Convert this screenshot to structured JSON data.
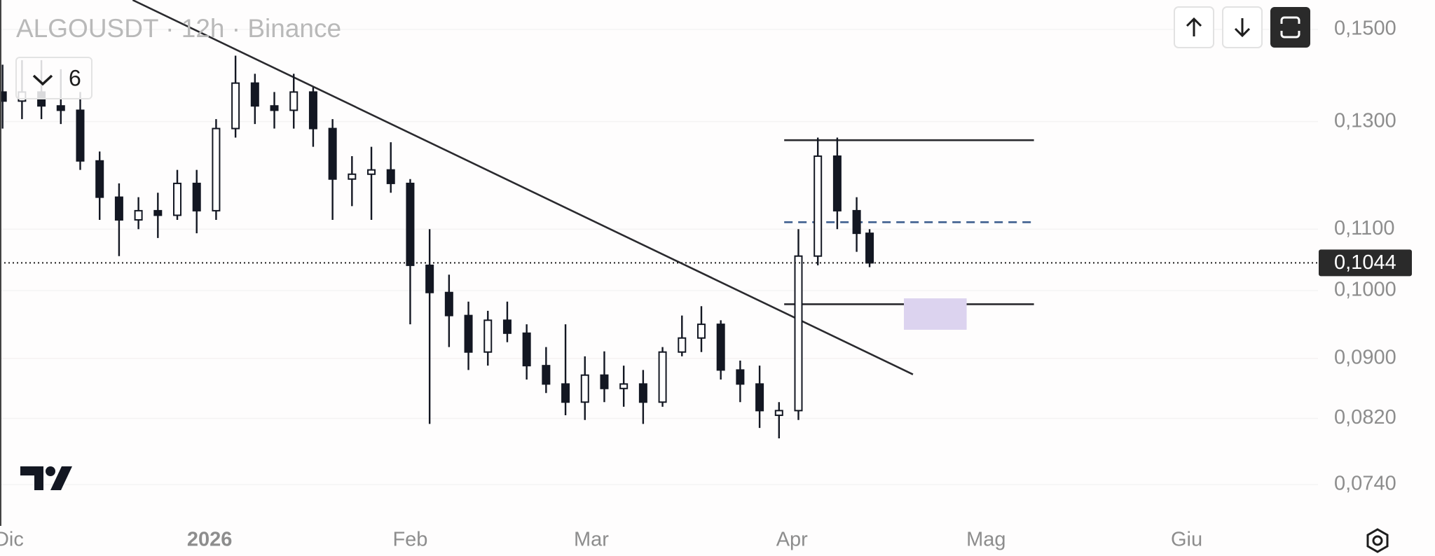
{
  "chart_data": {
    "type": "candlestick",
    "title": "ALGOUSDT · 12h · Binance",
    "indicator_label": "6",
    "color": "#131722",
    "log_scale": true,
    "grid": true,
    "x": [
      -1,
      2,
      5,
      8,
      11,
      14,
      17,
      20,
      23,
      26,
      29,
      32,
      35,
      38,
      41,
      44,
      47,
      50,
      53,
      56,
      59,
      62,
      65,
      68,
      71,
      74,
      77,
      80,
      83,
      86,
      89,
      92,
      95,
      98,
      101,
      104,
      107,
      110,
      113,
      116,
      119,
      122,
      125,
      128,
      131,
      133
    ],
    "open": [
      0.1361,
      0.1342,
      0.1361,
      0.1332,
      0.1323,
      0.1223,
      0.1156,
      0.1116,
      0.1132,
      0.1124,
      0.1181,
      0.1132,
      0.1286,
      0.138,
      0.1332,
      0.1323,
      0.1361,
      0.1286,
      0.1189,
      0.1198,
      0.1206,
      0.1181,
      0.104,
      0.0997,
      0.0962,
      0.0909,
      0.0955,
      0.0936,
      0.089,
      0.0865,
      0.0841,
      0.0877,
      0.0859,
      0.0865,
      0.0841,
      0.0909,
      0.0929,
      0.0949,
      0.0884,
      0.0865,
      0.0824,
      0.083,
      0.1055,
      0.1232,
      0.1132,
      0.1093
    ],
    "high": [
      0.142,
      0.143,
      0.143,
      0.141,
      0.1361,
      0.1241,
      0.1181,
      0.1156,
      0.1164,
      0.1206,
      0.1206,
      0.1305,
      0.144,
      0.14,
      0.1361,
      0.14,
      0.1371,
      0.1305,
      0.1232,
      0.125,
      0.1259,
      0.1189,
      0.11,
      0.1025,
      0.0983,
      0.0969,
      0.0983,
      0.0949,
      0.0916,
      0.0949,
      0.0903,
      0.091,
      0.089,
      0.0884,
      0.0916,
      0.0962,
      0.0976,
      0.0955,
      0.0897,
      0.089,
      0.0841,
      0.11,
      0.1268,
      0.1268,
      0.1156,
      0.11
    ],
    "low": [
      0.1286,
      0.1305,
      0.1305,
      0.1295,
      0.1206,
      0.1116,
      0.1055,
      0.11,
      0.1085,
      0.1116,
      0.1093,
      0.1116,
      0.1268,
      0.1295,
      0.1286,
      0.1286,
      0.125,
      0.1116,
      0.114,
      0.1116,
      0.1164,
      0.0949,
      0.0813,
      0.0916,
      0.0884,
      0.089,
      0.0923,
      0.0871,
      0.0853,
      0.0824,
      0.0818,
      0.0841,
      0.0835,
      0.0813,
      0.0835,
      0.0903,
      0.0909,
      0.0871,
      0.0841,
      0.0808,
      0.0795,
      0.0818,
      0.104,
      0.11,
      0.1062,
      0.1037
    ],
    "close": [
      0.1342,
      0.1361,
      0.1332,
      0.1323,
      0.1223,
      0.1156,
      0.1116,
      0.1132,
      0.1124,
      0.1181,
      0.1132,
      0.1286,
      0.138,
      0.1332,
      0.1323,
      0.1361,
      0.1286,
      0.1189,
      0.1198,
      0.1206,
      0.1181,
      0.104,
      0.0997,
      0.0962,
      0.0909,
      0.0955,
      0.0936,
      0.089,
      0.0865,
      0.0841,
      0.0877,
      0.0859,
      0.0865,
      0.0841,
      0.0909,
      0.0929,
      0.0949,
      0.0884,
      0.0865,
      0.083,
      0.083,
      0.1055,
      0.1232,
      0.1132,
      0.1093,
      0.1044
    ],
    "xlim": [
      -1.4,
      202.3
    ],
    "xticks": [
      {
        "value": 0,
        "label": "Dic"
      },
      {
        "value": 31,
        "label": "2026"
      },
      {
        "value": 62,
        "label": "Feb"
      },
      {
        "value": 90,
        "label": "Mar"
      },
      {
        "value": 121,
        "label": "Apr"
      },
      {
        "value": 151,
        "label": "Mag"
      },
      {
        "value": 182,
        "label": "Giu"
      }
    ],
    "ylim": [
      0.0694,
      0.157
    ],
    "yticks": [
      {
        "value": 0.074,
        "label": "0,0740"
      },
      {
        "value": 0.082,
        "label": "0,0820"
      },
      {
        "value": 0.09,
        "label": "0,0900"
      },
      {
        "value": 0.1,
        "label": "0,1000"
      },
      {
        "value": 0.11,
        "label": "0,1100"
      },
      {
        "value": 0.13,
        "label": "0,1300"
      },
      {
        "value": 0.15,
        "label": "0,1500"
      }
    ],
    "last_price": {
      "value": 0.1044,
      "label": "0,1044"
    },
    "drawings": [
      {
        "type": "trendline",
        "color": "#2a2a2e",
        "x": [
          19.1,
          139.7
        ],
        "y": [
          0.157,
          0.0878
        ]
      },
      {
        "type": "segment",
        "color": "#2a2a2e",
        "x": [
          119.8,
          158.4
        ],
        "y": [
          0.1263,
          0.1263
        ]
      },
      {
        "type": "dashed-segment",
        "color": "#3f5f8f",
        "x": [
          119.8,
          158.4
        ],
        "y": [
          0.1112,
          0.1112
        ]
      },
      {
        "type": "segment",
        "color": "#2a2a2e",
        "x": [
          119.8,
          158.4
        ],
        "y": [
          0.0979,
          0.0979
        ]
      },
      {
        "type": "rectangle",
        "color": "#dcd3ef",
        "x": [
          138.3,
          148
        ],
        "y": [
          0.0941,
          0.0988
        ]
      }
    ]
  }
}
